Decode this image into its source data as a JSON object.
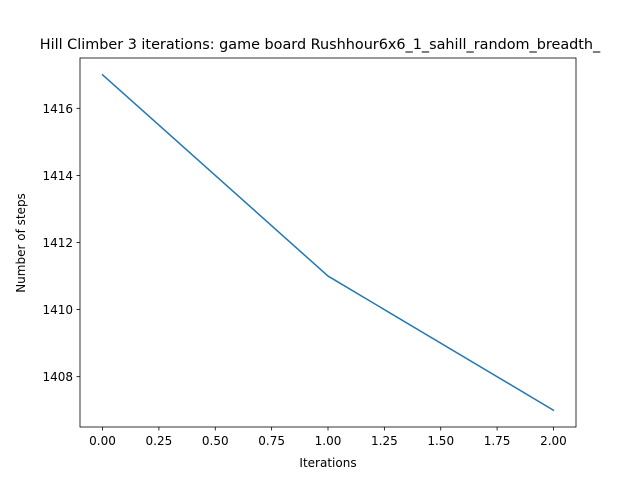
{
  "chart_data": {
    "type": "line",
    "title": "Hill Climber 3 iterations: game board Rushhour6x6_1_sahill_random_breadth_",
    "xlabel": "Iterations",
    "ylabel": "Number of steps",
    "xlim": [
      -0.1,
      2.1
    ],
    "ylim": [
      1406.5,
      1417.5
    ],
    "xticks": [
      0.0,
      0.25,
      0.5,
      0.75,
      1.0,
      1.25,
      1.5,
      1.75,
      2.0
    ],
    "xtick_labels": [
      "0.00",
      "0.25",
      "0.50",
      "0.75",
      "1.00",
      "1.25",
      "1.50",
      "1.75",
      "2.00"
    ],
    "yticks": [
      1408,
      1410,
      1412,
      1414,
      1416
    ],
    "ytick_labels": [
      "1408",
      "1410",
      "1412",
      "1414",
      "1416"
    ],
    "grid": false,
    "series": [
      {
        "x": [
          0,
          1,
          2
        ],
        "values": [
          1417,
          1411,
          1407
        ],
        "color": "#1f77b4"
      }
    ]
  }
}
